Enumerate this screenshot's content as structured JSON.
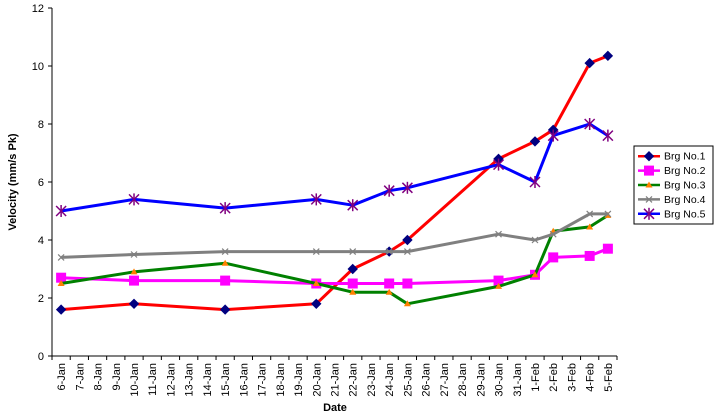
{
  "chart_data": {
    "type": "line",
    "xlabel": "Date",
    "ylabel": "Velocity (mm/s Pk)",
    "ylim": [
      0,
      12
    ],
    "yticks": [
      0,
      2,
      4,
      6,
      8,
      10,
      12
    ],
    "categories": [
      "6-Jan",
      "7-Jan",
      "8-Jan",
      "9-Jan",
      "10-Jan",
      "11-Jan",
      "12-Jan",
      "13-Jan",
      "14-Jan",
      "15-Jan",
      "16-Jan",
      "17-Jan",
      "18-Jan",
      "19-Jan",
      "20-Jan",
      "21-Jan",
      "22-Jan",
      "23-Jan",
      "24-Jan",
      "25-Jan",
      "26-Jan",
      "27-Jan",
      "28-Jan",
      "29-Jan",
      "30-Jan",
      "31-Jan",
      "1-Feb",
      "2-Feb",
      "3-Feb",
      "4-Feb",
      "5-Feb"
    ],
    "grid": false,
    "legend_position": "right",
    "series": [
      {
        "name": "Brg No.1",
        "color": "#ff0000",
        "marker_color": "#000080",
        "marker": "diamond",
        "points": [
          {
            "x": "6-Jan",
            "y": 1.6
          },
          {
            "x": "10-Jan",
            "y": 1.8
          },
          {
            "x": "15-Jan",
            "y": 1.6
          },
          {
            "x": "20-Jan",
            "y": 1.8
          },
          {
            "x": "22-Jan",
            "y": 3.0
          },
          {
            "x": "24-Jan",
            "y": 3.6
          },
          {
            "x": "25-Jan",
            "y": 4.0
          },
          {
            "x": "30-Jan",
            "y": 6.8
          },
          {
            "x": "1-Feb",
            "y": 7.4
          },
          {
            "x": "2-Feb",
            "y": 7.8
          },
          {
            "x": "4-Feb",
            "y": 10.1
          },
          {
            "x": "5-Feb",
            "y": 10.35
          }
        ]
      },
      {
        "name": "Brg No.2",
        "color": "#ff00ff",
        "marker_color": "#ff00ff",
        "marker": "square",
        "points": [
          {
            "x": "6-Jan",
            "y": 2.7
          },
          {
            "x": "10-Jan",
            "y": 2.6
          },
          {
            "x": "15-Jan",
            "y": 2.6
          },
          {
            "x": "20-Jan",
            "y": 2.5
          },
          {
            "x": "22-Jan",
            "y": 2.5
          },
          {
            "x": "24-Jan",
            "y": 2.5
          },
          {
            "x": "25-Jan",
            "y": 2.5
          },
          {
            "x": "30-Jan",
            "y": 2.6
          },
          {
            "x": "1-Feb",
            "y": 2.8
          },
          {
            "x": "2-Feb",
            "y": 3.4
          },
          {
            "x": "4-Feb",
            "y": 3.45
          },
          {
            "x": "5-Feb",
            "y": 3.7
          }
        ]
      },
      {
        "name": "Brg No.3",
        "color": "#008000",
        "marker_color": "#ff8000",
        "marker": "triangle",
        "points": [
          {
            "x": "6-Jan",
            "y": 2.5
          },
          {
            "x": "10-Jan",
            "y": 2.9
          },
          {
            "x": "15-Jan",
            "y": 3.2
          },
          {
            "x": "20-Jan",
            "y": 2.5
          },
          {
            "x": "22-Jan",
            "y": 2.2
          },
          {
            "x": "24-Jan",
            "y": 2.2
          },
          {
            "x": "25-Jan",
            "y": 1.8
          },
          {
            "x": "30-Jan",
            "y": 2.4
          },
          {
            "x": "1-Feb",
            "y": 2.8
          },
          {
            "x": "2-Feb",
            "y": 4.3
          },
          {
            "x": "4-Feb",
            "y": 4.45
          },
          {
            "x": "5-Feb",
            "y": 4.85
          }
        ]
      },
      {
        "name": "Brg No.4",
        "color": "#808080",
        "marker_color": "#808080",
        "marker": "x",
        "points": [
          {
            "x": "6-Jan",
            "y": 3.4
          },
          {
            "x": "10-Jan",
            "y": 3.5
          },
          {
            "x": "15-Jan",
            "y": 3.6
          },
          {
            "x": "20-Jan",
            "y": 3.6
          },
          {
            "x": "22-Jan",
            "y": 3.6
          },
          {
            "x": "24-Jan",
            "y": 3.6
          },
          {
            "x": "25-Jan",
            "y": 3.6
          },
          {
            "x": "30-Jan",
            "y": 4.2
          },
          {
            "x": "1-Feb",
            "y": 4.0
          },
          {
            "x": "2-Feb",
            "y": 4.2
          },
          {
            "x": "4-Feb",
            "y": 4.9
          },
          {
            "x": "5-Feb",
            "y": 4.9
          }
        ]
      },
      {
        "name": "Brg No.5",
        "color": "#0000ff",
        "marker_color": "#800080",
        "marker": "star",
        "points": [
          {
            "x": "6-Jan",
            "y": 5.0
          },
          {
            "x": "10-Jan",
            "y": 5.4
          },
          {
            "x": "15-Jan",
            "y": 5.1
          },
          {
            "x": "20-Jan",
            "y": 5.4
          },
          {
            "x": "22-Jan",
            "y": 5.2
          },
          {
            "x": "24-Jan",
            "y": 5.7
          },
          {
            "x": "25-Jan",
            "y": 5.8
          },
          {
            "x": "30-Jan",
            "y": 6.6
          },
          {
            "x": "1-Feb",
            "y": 6.0
          },
          {
            "x": "2-Feb",
            "y": 7.6
          },
          {
            "x": "4-Feb",
            "y": 8.0
          },
          {
            "x": "5-Feb",
            "y": 7.6
          }
        ]
      }
    ]
  }
}
